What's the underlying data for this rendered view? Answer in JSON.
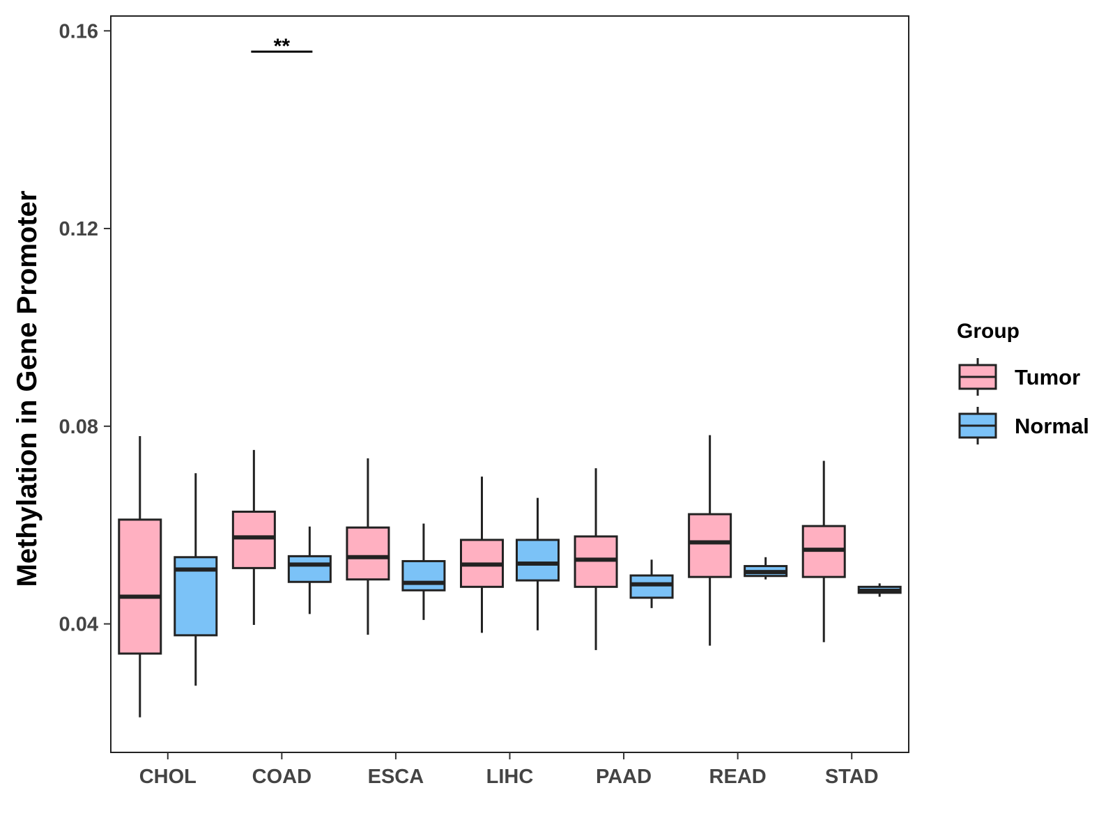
{
  "chart_data": {
    "type": "boxplot",
    "title": "",
    "xlabel": "",
    "ylabel": "Methylation in Gene Promoter",
    "ylim": [
      0.014,
      0.163
    ],
    "yticks": [
      0.04,
      0.08,
      0.12,
      0.16
    ],
    "ytick_labels": [
      "0.04",
      "0.08",
      "0.12",
      "0.16"
    ],
    "grid": false,
    "categories": [
      "CHOL",
      "COAD",
      "ESCA",
      "LIHC",
      "PAAD",
      "READ",
      "STAD"
    ],
    "legend": {
      "title": "Group",
      "position": "right",
      "entries": [
        {
          "name": "Tumor",
          "color": "#FFB0C1"
        },
        {
          "name": "Normal",
          "color": "#7BC2F7"
        }
      ]
    },
    "series": [
      {
        "name": "Tumor",
        "color": "#FFB0C1",
        "boxes": [
          {
            "category": "CHOL",
            "whisker_low": 0.0211,
            "q1": 0.034,
            "median": 0.0455,
            "q3": 0.0611,
            "whisker_high": 0.078
          },
          {
            "category": "COAD",
            "whisker_low": 0.0398,
            "q1": 0.0513,
            "median": 0.0575,
            "q3": 0.0627,
            "whisker_high": 0.0752
          },
          {
            "category": "ESCA",
            "whisker_low": 0.0378,
            "q1": 0.049,
            "median": 0.0535,
            "q3": 0.0595,
            "whisker_high": 0.0735
          },
          {
            "category": "LIHC",
            "whisker_low": 0.0382,
            "q1": 0.0475,
            "median": 0.052,
            "q3": 0.057,
            "whisker_high": 0.0698
          },
          {
            "category": "PAAD",
            "whisker_low": 0.0347,
            "q1": 0.0475,
            "median": 0.053,
            "q3": 0.0577,
            "whisker_high": 0.0715
          },
          {
            "category": "READ",
            "whisker_low": 0.0356,
            "q1": 0.0495,
            "median": 0.0565,
            "q3": 0.0622,
            "whisker_high": 0.0782
          },
          {
            "category": "STAD",
            "whisker_low": 0.0363,
            "q1": 0.0495,
            "median": 0.055,
            "q3": 0.0598,
            "whisker_high": 0.073
          }
        ]
      },
      {
        "name": "Normal",
        "color": "#7BC2F7",
        "boxes": [
          {
            "category": "CHOL",
            "whisker_low": 0.0275,
            "q1": 0.0377,
            "median": 0.051,
            "q3": 0.0535,
            "whisker_high": 0.0705
          },
          {
            "category": "COAD",
            "whisker_low": 0.042,
            "q1": 0.0485,
            "median": 0.052,
            "q3": 0.0537,
            "whisker_high": 0.0597
          },
          {
            "category": "ESCA",
            "whisker_low": 0.0408,
            "q1": 0.0468,
            "median": 0.0483,
            "q3": 0.0527,
            "whisker_high": 0.0603
          },
          {
            "category": "LIHC",
            "whisker_low": 0.0387,
            "q1": 0.0488,
            "median": 0.0522,
            "q3": 0.057,
            "whisker_high": 0.0655
          },
          {
            "category": "PAAD",
            "whisker_low": 0.0432,
            "q1": 0.0453,
            "median": 0.048,
            "q3": 0.0498,
            "whisker_high": 0.053
          },
          {
            "category": "READ",
            "whisker_low": 0.049,
            "q1": 0.0497,
            "median": 0.0505,
            "q3": 0.0517,
            "whisker_high": 0.0535
          },
          {
            "category": "STAD",
            "whisker_low": 0.0455,
            "q1": 0.0463,
            "median": 0.0467,
            "q3": 0.0475,
            "whisker_high": 0.0482
          }
        ]
      }
    ],
    "annotations": [
      {
        "category": "COAD",
        "text": "**",
        "y": 0.1558
      }
    ]
  }
}
